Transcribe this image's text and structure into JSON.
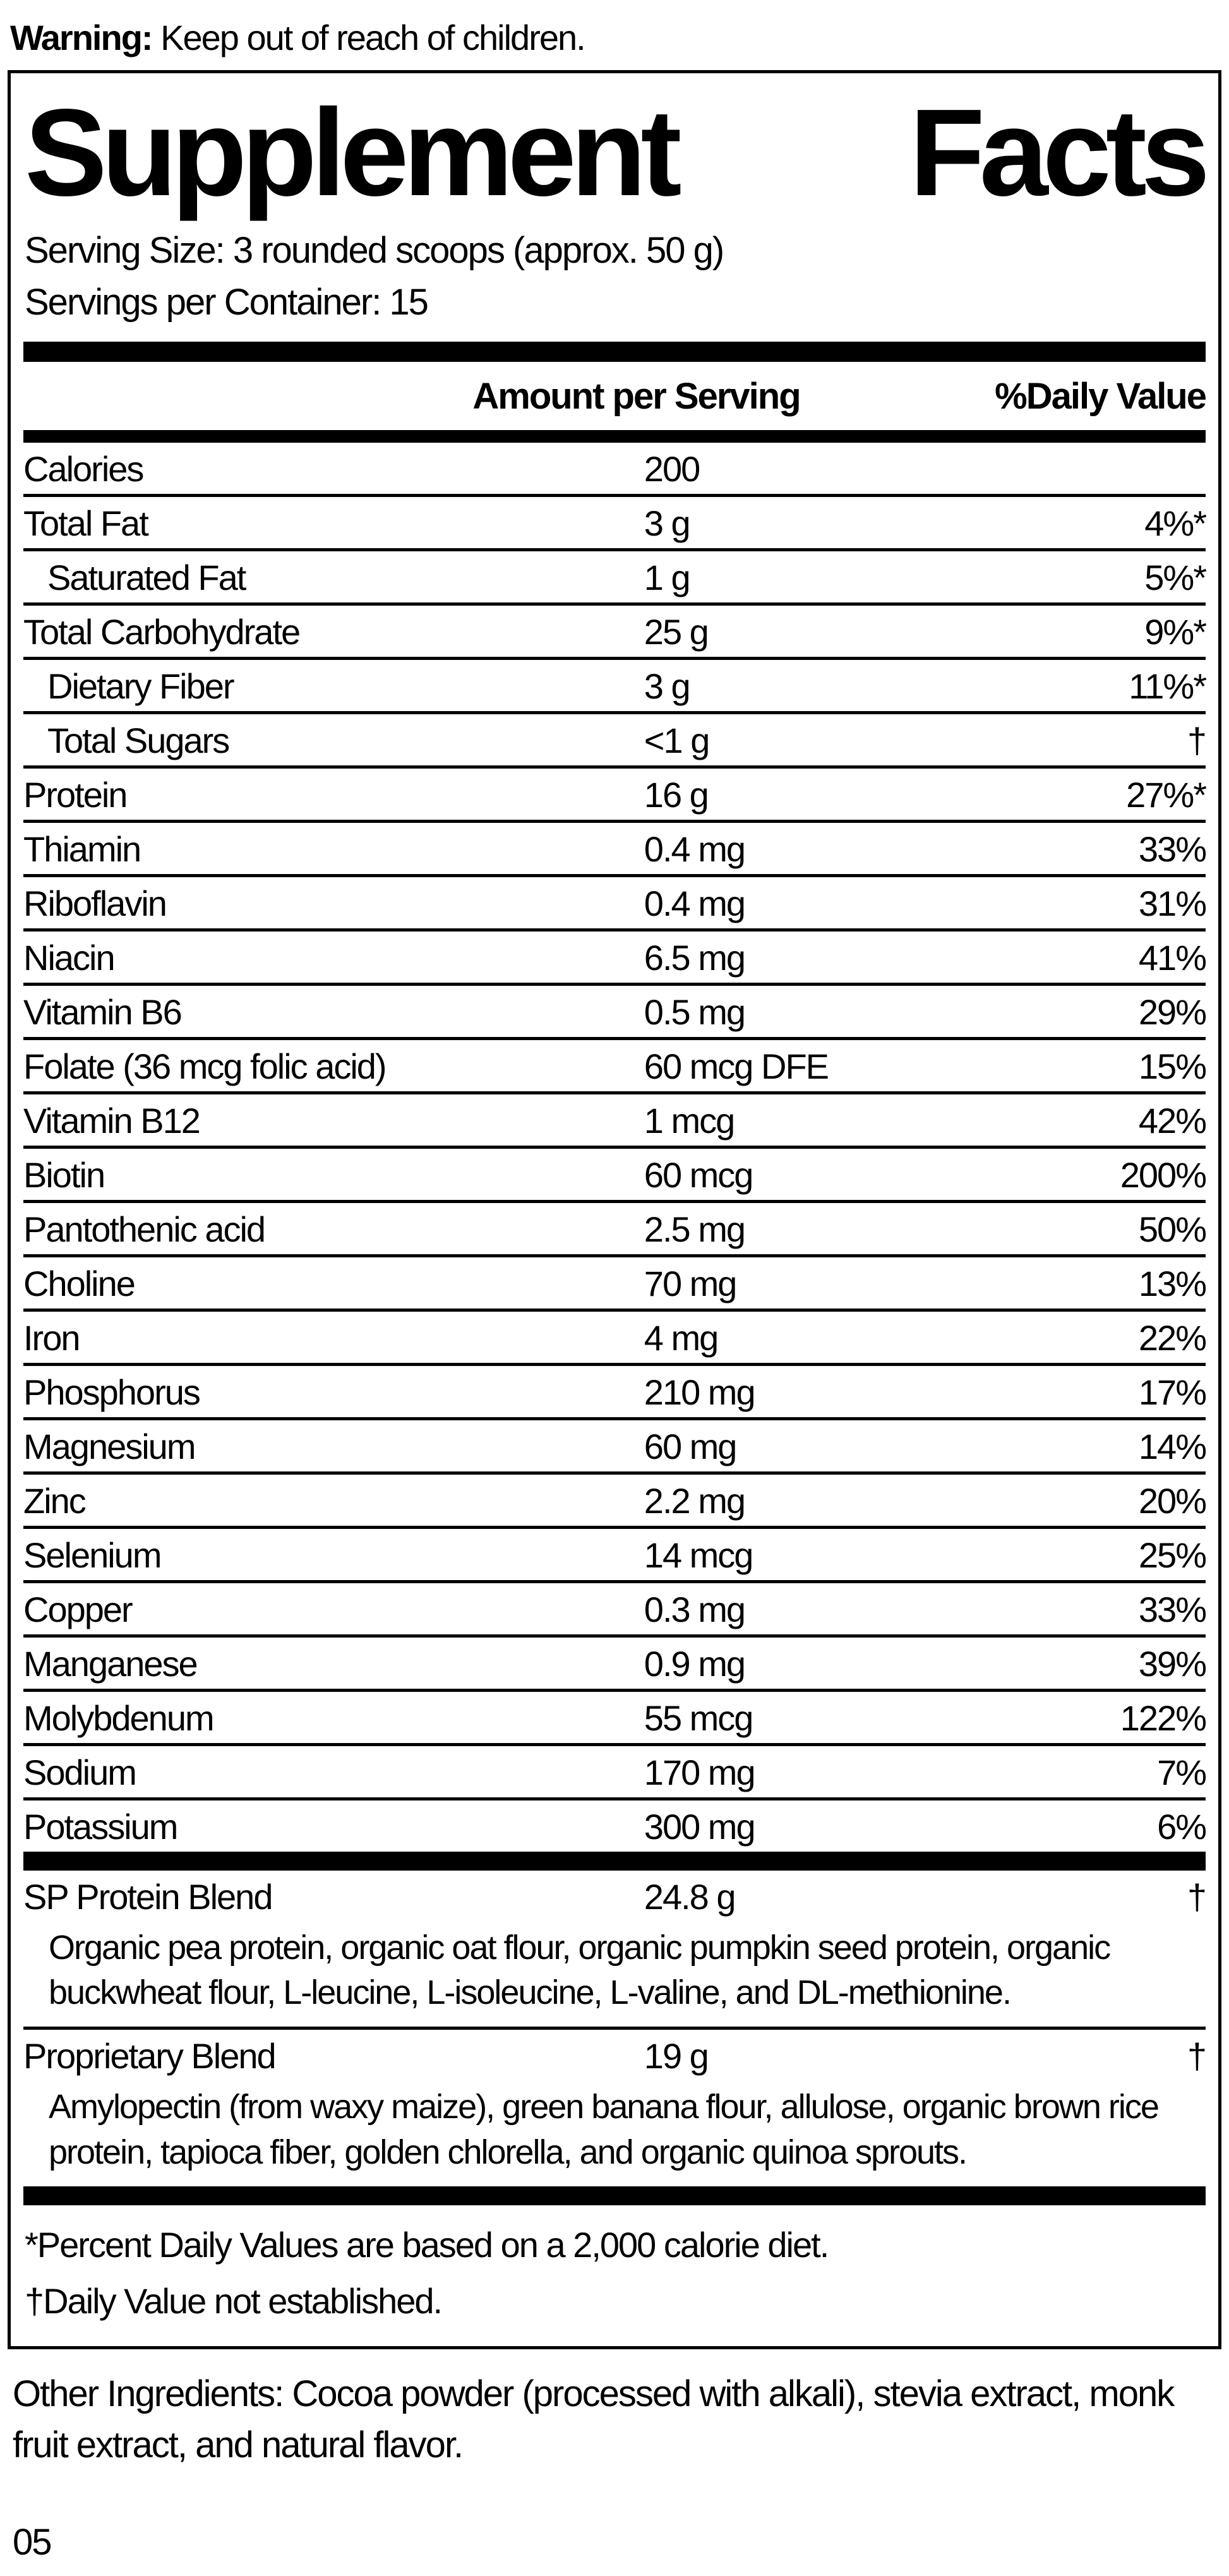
{
  "warning": {
    "label": "Warning:",
    "text": " Keep out of reach of children."
  },
  "panel": {
    "title_word1": "Supplement",
    "title_word2": "Facts",
    "serving_size": "Serving Size: 3 rounded scoops (approx. 50 g)",
    "servings_per_container": "Servings per Container: 15",
    "col_amount": "Amount per Serving",
    "col_dv": "%Daily Value",
    "rows": [
      {
        "name": "Calories",
        "amount": "200",
        "dv": ""
      },
      {
        "name": "Total Fat",
        "amount": "3 g",
        "dv": "4%*"
      },
      {
        "name": "Saturated Fat",
        "amount": "1 g",
        "dv": "5%*"
      },
      {
        "name": "Total Carbohydrate",
        "amount": "25 g",
        "dv": "9%*"
      },
      {
        "name": "Dietary Fiber",
        "amount": "3 g",
        "dv": "11%*"
      },
      {
        "name": "Total Sugars",
        "amount": "<1 g",
        "dv": "†"
      },
      {
        "name": "Protein",
        "amount": "16 g",
        "dv": "27%*"
      },
      {
        "name": "Thiamin",
        "amount": "0.4 mg",
        "dv": "33%"
      },
      {
        "name": "Riboflavin",
        "amount": "0.4 mg",
        "dv": "31%"
      },
      {
        "name": "Niacin",
        "amount": "6.5 mg",
        "dv": "41%"
      },
      {
        "name": "Vitamin B6",
        "amount": "0.5 mg",
        "dv": "29%"
      },
      {
        "name": "Folate (36 mcg folic acid)",
        "amount": "60 mcg DFE",
        "dv": "15%"
      },
      {
        "name": "Vitamin B12",
        "amount": "1 mcg",
        "dv": "42%"
      },
      {
        "name": "Biotin",
        "amount": "60 mcg",
        "dv": "200%"
      },
      {
        "name": "Pantothenic acid",
        "amount": "2.5 mg",
        "dv": "50%"
      },
      {
        "name": "Choline",
        "amount": "70 mg",
        "dv": "13%"
      },
      {
        "name": "Iron",
        "amount": "4 mg",
        "dv": "22%"
      },
      {
        "name": "Phosphorus",
        "amount": "210 mg",
        "dv": "17%"
      },
      {
        "name": "Magnesium",
        "amount": "60 mg",
        "dv": "14%"
      },
      {
        "name": "Zinc",
        "amount": "2.2 mg",
        "dv": "20%"
      },
      {
        "name": "Selenium",
        "amount": "14 mcg",
        "dv": "25%"
      },
      {
        "name": "Copper",
        "amount": "0.3 mg",
        "dv": "33%"
      },
      {
        "name": "Manganese",
        "amount": "0.9 mg",
        "dv": "39%"
      },
      {
        "name": "Molybdenum",
        "amount": "55 mcg",
        "dv": "122%"
      },
      {
        "name": "Sodium",
        "amount": "170 mg",
        "dv": "7%"
      },
      {
        "name": "Potassium",
        "amount": "300 mg",
        "dv": "6%"
      }
    ],
    "blends": [
      {
        "name": "SP Protein Blend",
        "amount": "24.8 g",
        "dv": "†",
        "description": "Organic pea protein, organic oat flour, organic pumpkin seed protein, organic buckwheat flour, L-leucine, L-isoleucine, L-valine, and DL-methionine."
      },
      {
        "name": "Proprietary Blend",
        "amount": "19 g",
        "dv": "†",
        "description": "Amylopectin (from waxy maize), green banana flour, allulose, organic brown rice protein, tapioca fiber, golden chlorella, and organic quinoa sprouts."
      }
    ],
    "footnotes": [
      "*Percent Daily Values are based on a 2,000 calorie diet.",
      "†Daily Value not established."
    ]
  },
  "other_ingredients": "Other Ingredients: Cocoa powder (processed with alkali), stevia extract, monk fruit extract, and natural flavor.",
  "page_number": "05",
  "colors": {
    "text": "#000000",
    "background": "#ffffff",
    "divider": "#000000"
  }
}
